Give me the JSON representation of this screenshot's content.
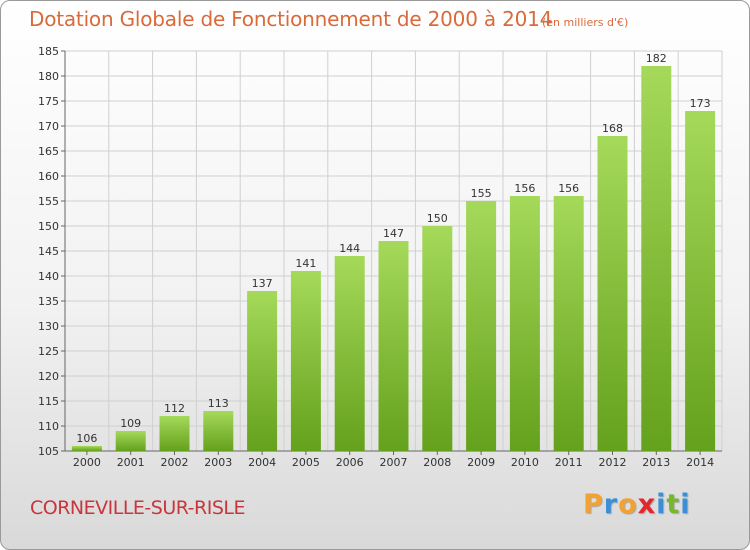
{
  "header": {
    "title": "Dotation Globale de Fonctionnement de 2000 à 2014",
    "subtitle": "(en milliers d'€)"
  },
  "footer": {
    "commune": "CORNEVILLE-SUR-RISLE",
    "logo_letters": [
      "P",
      "r",
      "o",
      "x",
      "i",
      "t",
      "i"
    ],
    "logo_colors": [
      "#f2a233",
      "#3a8fd6",
      "#f2a233",
      "#e2262b",
      "#3a8fd6",
      "#77b82a",
      "#3a8fd6"
    ]
  },
  "colors": {
    "bar_light": "#a5d95a",
    "bar_dark": "#64a11c",
    "grid": "#d0d0d0",
    "title": "#d96a3a",
    "commune": "#c8363c"
  },
  "chart_data": {
    "type": "bar",
    "title": "Dotation Globale de Fonctionnement de 2000 à 2014",
    "subtitle": "(en milliers d'€)",
    "categories": [
      "2000",
      "2001",
      "2002",
      "2003",
      "2004",
      "2005",
      "2006",
      "2007",
      "2008",
      "2009",
      "2010",
      "2011",
      "2012",
      "2013",
      "2014"
    ],
    "values": [
      106,
      109,
      112,
      113,
      137,
      141,
      144,
      147,
      150,
      155,
      156,
      156,
      168,
      182,
      173
    ],
    "ylim": [
      105,
      185
    ],
    "yticks": [
      105,
      110,
      115,
      120,
      125,
      130,
      135,
      140,
      145,
      150,
      155,
      160,
      165,
      170,
      175,
      180,
      185
    ],
    "grid": true,
    "data_labels": true
  }
}
